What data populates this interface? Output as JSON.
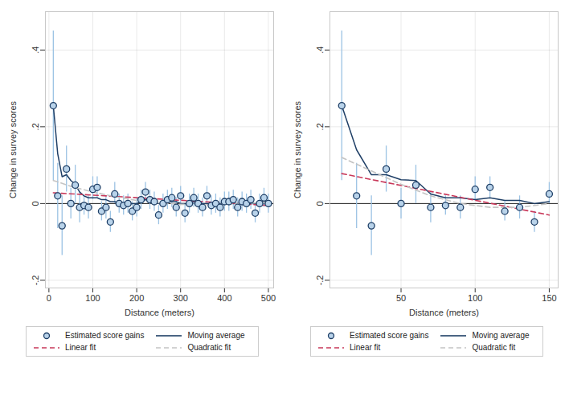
{
  "chart_data": [
    {
      "type": "scatter",
      "x_label": "Distance (meters)",
      "y_label": "Change in survey scores",
      "xlim": [
        -8,
        512
      ],
      "xticks": [
        0,
        100,
        200,
        300,
        400,
        500
      ],
      "ylim": [
        -0.22,
        0.5
      ],
      "yticks": [
        {
          "value": -0.2,
          "label": "-.2"
        },
        0,
        {
          "value": 0.2,
          "label": ".2"
        },
        {
          "value": 0.4,
          "label": ".4"
        }
      ],
      "grid": true,
      "legend": "bottom",
      "reference_line": 0,
      "x": [
        10,
        20,
        30,
        40,
        50,
        60,
        70,
        80,
        90,
        100,
        110,
        120,
        130,
        140,
        150,
        160,
        170,
        180,
        190,
        200,
        210,
        220,
        230,
        240,
        250,
        260,
        270,
        280,
        290,
        300,
        310,
        320,
        330,
        340,
        350,
        360,
        370,
        380,
        390,
        400,
        410,
        420,
        430,
        440,
        450,
        460,
        470,
        480,
        490,
        500
      ],
      "series": [
        {
          "name": "Estimated score gains",
          "type": "scatter",
          "marker": "circle",
          "color": "#1f3f66",
          "values": [
            0.255,
            0.02,
            -0.058,
            0.09,
            0.0,
            0.048,
            -0.01,
            -0.005,
            -0.01,
            0.037,
            0.042,
            -0.02,
            -0.01,
            -0.048,
            0.025,
            0.0,
            -0.005,
            0.0,
            -0.02,
            -0.01,
            0.01,
            0.03,
            0.01,
            0.005,
            -0.03,
            0.0,
            0.01,
            0.015,
            -0.01,
            0.02,
            -0.025,
            0.0,
            0.015,
            0.0,
            -0.01,
            0.02,
            -0.005,
            0.0,
            -0.01,
            0.005,
            0.005,
            0.01,
            -0.01,
            0.005,
            0.0,
            0.01,
            -0.025,
            0.0,
            0.015,
            0.0
          ],
          "lower": [
            0.06,
            -0.065,
            -0.135,
            0.03,
            -0.04,
            0.0,
            -0.05,
            -0.03,
            -0.04,
            0.01,
            0.015,
            -0.045,
            -0.04,
            -0.075,
            0.0,
            -0.025,
            -0.03,
            -0.025,
            -0.045,
            -0.035,
            -0.015,
            0.005,
            -0.015,
            -0.02,
            -0.055,
            -0.025,
            -0.015,
            -0.01,
            -0.035,
            -0.005,
            -0.05,
            -0.025,
            -0.01,
            -0.025,
            -0.035,
            -0.005,
            -0.03,
            -0.025,
            -0.035,
            -0.02,
            -0.02,
            -0.015,
            -0.035,
            -0.02,
            -0.025,
            -0.015,
            -0.05,
            -0.025,
            -0.01,
            -0.025
          ],
          "upper": [
            0.45,
            0.105,
            0.02,
            0.15,
            0.04,
            0.1,
            0.03,
            0.02,
            0.02,
            0.07,
            0.07,
            0.005,
            0.02,
            -0.02,
            0.055,
            0.025,
            0.02,
            0.025,
            0.005,
            0.015,
            0.035,
            0.055,
            0.035,
            0.03,
            -0.005,
            0.025,
            0.035,
            0.04,
            0.015,
            0.045,
            0.0,
            0.025,
            0.04,
            0.025,
            0.015,
            0.045,
            0.02,
            0.025,
            0.015,
            0.03,
            0.03,
            0.035,
            0.015,
            0.03,
            0.025,
            0.035,
            0.0,
            0.025,
            0.04,
            0.025
          ]
        },
        {
          "name": "Moving average",
          "type": "line",
          "line_style": "solid",
          "color": "#1f3f66",
          "values": [
            0.255,
            0.13,
            0.07,
            0.075,
            0.06,
            0.05,
            0.03,
            0.02,
            0.015,
            0.015,
            0.015,
            0.01,
            0.01,
            0.005,
            0.005,
            0.0,
            -0.005,
            0.0,
            0.0,
            0.0,
            0.005,
            0.01,
            0.01,
            0.005,
            0.0,
            0.0,
            0.005,
            0.005,
            0.005,
            0.0,
            0.0,
            0.0,
            0.005,
            0.0,
            0.0,
            0.0,
            0.0,
            0.0,
            0.0,
            0.0,
            0.005,
            0.0,
            0.0,
            0.0,
            0.0,
            0.0,
            0.0,
            0.005,
            0.005,
            0.005
          ]
        },
        {
          "name": "Linear fit",
          "type": "line",
          "line_style": "dashed",
          "color": "#c8385a",
          "x": [
            10,
            500
          ],
          "values": [
            0.028,
            -0.005
          ]
        },
        {
          "name": "Quadratic fit",
          "type": "line",
          "line_style": "dashed",
          "color": "#c4c4c4",
          "x": [
            10,
            50,
            100,
            150,
            200,
            250,
            300,
            350,
            400,
            450,
            500
          ],
          "values": [
            0.06,
            0.045,
            0.03,
            0.018,
            0.008,
            0.002,
            -0.002,
            -0.003,
            -0.002,
            0.0,
            0.004
          ]
        }
      ]
    },
    {
      "type": "scatter",
      "x_label": "Distance (meters)",
      "y_label": "Change in survey scores",
      "xlim": [
        2,
        156
      ],
      "xticks": [
        50,
        100,
        150
      ],
      "ylim": [
        -0.22,
        0.5
      ],
      "yticks": [
        {
          "value": -0.2,
          "label": "-.2"
        },
        0,
        {
          "value": 0.2,
          "label": ".2"
        },
        {
          "value": 0.4,
          "label": ".4"
        }
      ],
      "grid": true,
      "legend": "bottom",
      "reference_line": 0,
      "x": [
        10,
        20,
        30,
        40,
        50,
        60,
        70,
        80,
        90,
        100,
        110,
        120,
        130,
        140,
        150
      ],
      "series": [
        {
          "name": "Estimated score gains",
          "type": "scatter",
          "marker": "circle",
          "color": "#1f3f66",
          "values": [
            0.255,
            0.02,
            -0.058,
            0.09,
            0.0,
            0.048,
            -0.01,
            -0.005,
            -0.01,
            0.037,
            0.042,
            -0.02,
            -0.01,
            -0.048,
            0.025
          ],
          "lower": [
            0.06,
            -0.065,
            -0.135,
            0.03,
            -0.04,
            0.0,
            -0.05,
            -0.03,
            -0.04,
            0.01,
            0.015,
            -0.045,
            -0.04,
            -0.075,
            0.0
          ],
          "upper": [
            0.45,
            0.105,
            0.02,
            0.15,
            0.04,
            0.1,
            0.03,
            0.02,
            0.02,
            0.07,
            0.07,
            0.005,
            0.02,
            -0.02,
            0.055
          ]
        },
        {
          "name": "Moving average",
          "type": "line",
          "line_style": "solid",
          "color": "#1f3f66",
          "values": [
            0.255,
            0.14,
            0.075,
            0.075,
            0.062,
            0.06,
            0.025,
            0.015,
            0.015,
            0.01,
            0.015,
            0.008,
            0.008,
            0.0,
            0.005
          ]
        },
        {
          "name": "Linear fit",
          "type": "line",
          "line_style": "dashed",
          "color": "#c8385a",
          "x": [
            10,
            150
          ],
          "values": [
            0.078,
            -0.03
          ]
        },
        {
          "name": "Quadratic fit",
          "type": "line",
          "line_style": "dashed",
          "color": "#c4c4c4",
          "x": [
            10,
            30,
            50,
            70,
            90,
            110,
            130,
            150
          ],
          "values": [
            0.12,
            0.085,
            0.05,
            0.02,
            0.0,
            -0.01,
            -0.01,
            0.0
          ]
        }
      ]
    }
  ]
}
